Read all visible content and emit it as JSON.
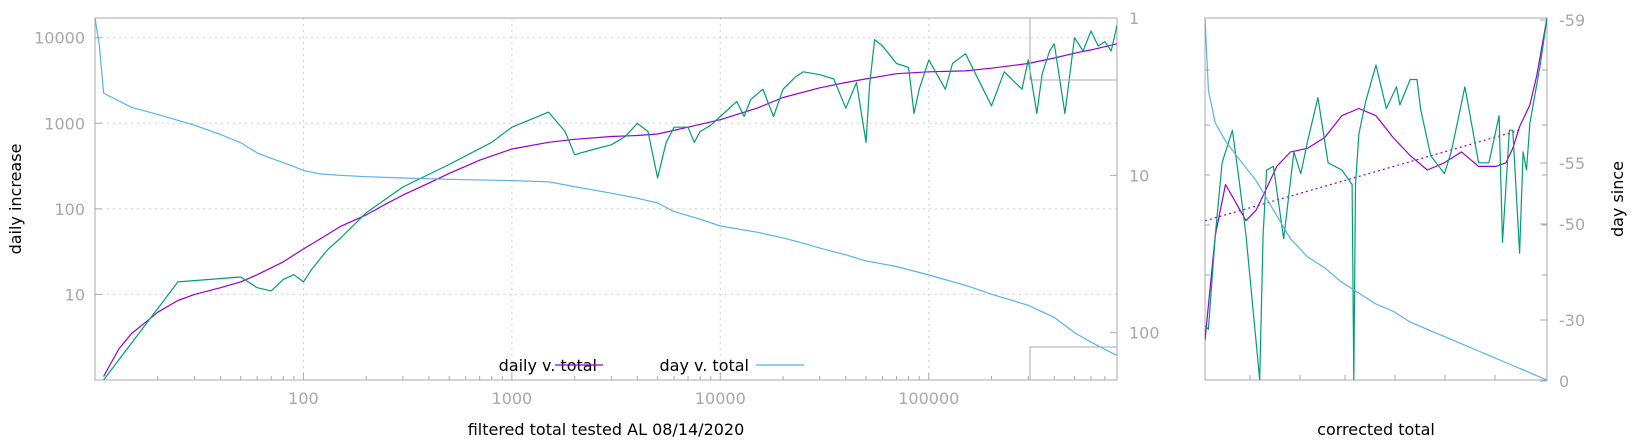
{
  "colors": {
    "daily_smooth": "#9400d3",
    "daily_raw": "#009e73",
    "day": "#56b4e9",
    "axis": "#aaaaaa",
    "grid": "#cfcfcf"
  },
  "chart_data": [
    {
      "type": "line",
      "xlabel": "filtered total tested AL 08/14/2020",
      "ylabel": "daily increase",
      "y2label": "",
      "xscale": "log",
      "yscale": "log",
      "y2scale": "log-reversed",
      "xlim": [
        10,
        800000
      ],
      "ylim": [
        1,
        17000
      ],
      "y2lim": [
        1,
        200
      ],
      "xticks": [
        "100",
        "1000",
        "10000",
        "100000"
      ],
      "yticks": [
        "10",
        "100",
        "1000",
        "10000"
      ],
      "y2ticks": [
        "1",
        "10",
        "100"
      ],
      "grid": true,
      "legend_position": "bottom-center",
      "series": [
        {
          "name": "daily v. total",
          "axis": "y",
          "x": [
            11,
            13,
            15,
            18,
            20,
            25,
            30,
            40,
            50,
            60,
            80,
            100,
            130,
            150,
            200,
            250,
            300,
            400,
            500,
            700,
            1000,
            1500,
            2000,
            3000,
            4000,
            5000,
            7000,
            10000,
            15000,
            20000,
            30000,
            40000,
            50000,
            70000,
            100000,
            150000,
            200000,
            300000,
            400000,
            500000,
            600000,
            800000
          ],
          "y": [
            1.1,
            2.3,
            3.5,
            5,
            6.2,
            8.5,
            10,
            12,
            14,
            17,
            24,
            34,
            50,
            62,
            85,
            115,
            145,
            200,
            260,
            370,
            500,
            600,
            650,
            700,
            720,
            750,
            900,
            1100,
            1500,
            2000,
            2600,
            3000,
            3300,
            3800,
            4000,
            4100,
            4400,
            5000,
            5800,
            6600,
            7200,
            8500
          ]
        },
        {
          "name": "",
          "axis": "y",
          "x": [
            11,
            25,
            50,
            60,
            70,
            80,
            90,
            100,
            110,
            130,
            150,
            200,
            300,
            500,
            800,
            1000,
            1500,
            1800,
            2000,
            2500,
            3000,
            3500,
            4000,
            4500,
            5000,
            5500,
            6000,
            7000,
            7500,
            8000,
            9000,
            10000,
            12000,
            13000,
            14000,
            16000,
            18000,
            20000,
            23000,
            25000,
            30000,
            35000,
            40000,
            45000,
            50000,
            52000,
            55000,
            60000,
            70000,
            80000,
            85000,
            90000,
            100000,
            120000,
            130000,
            150000,
            200000,
            230000,
            280000,
            300000,
            330000,
            350000,
            380000,
            400000,
            450000,
            500000,
            550000,
            600000,
            650000,
            700000,
            750000,
            800000
          ],
          "y": [
            1,
            14,
            16,
            12,
            11,
            15,
            17,
            14,
            20,
            33,
            45,
            90,
            180,
            330,
            600,
            900,
            1350,
            800,
            430,
            500,
            560,
            700,
            1000,
            800,
            230,
            600,
            900,
            900,
            600,
            800,
            950,
            1200,
            1800,
            1200,
            1900,
            2500,
            1200,
            2500,
            3500,
            4000,
            3700,
            3300,
            1500,
            3000,
            600,
            2800,
            9500,
            8000,
            5000,
            4500,
            1300,
            2500,
            5500,
            2500,
            5000,
            6500,
            1600,
            4000,
            2500,
            5500,
            1300,
            3800,
            7000,
            8500,
            1300,
            10000,
            7000,
            12000,
            8000,
            9000,
            7000,
            14000
          ]
        },
        {
          "name": "day v. total",
          "axis": "y2",
          "x": [
            10,
            10.5,
            11,
            15,
            20,
            30,
            40,
            50,
            60,
            70,
            80,
            90,
            100,
            120,
            150,
            200,
            300,
            500,
            1000,
            1500,
            2000,
            3000,
            4000,
            5000,
            6000,
            8000,
            10000,
            15000,
            20000,
            25000,
            30000,
            40000,
            50000,
            70000,
            100000,
            150000,
            200000,
            300000,
            400000,
            500000,
            600000,
            800000
          ],
          "y2": [
            1,
            1.5,
            3,
            3.7,
            4.1,
            4.8,
            5.5,
            6.2,
            7.2,
            7.8,
            8.3,
            8.8,
            9.3,
            9.8,
            10,
            10.2,
            10.4,
            10.6,
            10.8,
            11,
            11.8,
            13,
            14,
            15,
            17,
            19,
            21,
            23,
            25,
            27,
            29,
            32,
            35,
            38,
            43,
            50,
            57,
            67,
            80,
            100,
            115,
            140
          ]
        }
      ]
    },
    {
      "type": "line",
      "xlabel": "corrected total",
      "ylabel": "",
      "y2label": "day since",
      "y2ticks": [
        "-59",
        "-55",
        "-50",
        "-30",
        "0"
      ],
      "grid": false,
      "series": [
        {
          "name": "",
          "color": "daily_smooth",
          "x": [
            0,
            0.03,
            0.06,
            0.09,
            0.12,
            0.15,
            0.18,
            0.21,
            0.25,
            0.3,
            0.35,
            0.4,
            0.45,
            0.5,
            0.55,
            0.6,
            0.65,
            0.7,
            0.75,
            0.8,
            0.85,
            0.88,
            0.9,
            0.92,
            0.95,
            0.97,
            1
          ],
          "y": [
            0.11,
            0.4,
            0.54,
            0.49,
            0.44,
            0.47,
            0.53,
            0.59,
            0.63,
            0.64,
            0.67,
            0.73,
            0.75,
            0.73,
            0.67,
            0.62,
            0.58,
            0.6,
            0.63,
            0.59,
            0.59,
            0.6,
            0.64,
            0.7,
            0.76,
            0.84,
            1
          ]
        },
        {
          "name": "",
          "color": "daily_smooth",
          "style": "dotted",
          "x": [
            0,
            0.92
          ],
          "y": [
            0.44,
            0.69
          ]
        },
        {
          "name": "",
          "color": "daily_raw",
          "x": [
            0,
            0.01,
            0.03,
            0.05,
            0.08,
            0.1,
            0.12,
            0.16,
            0.17,
            0.18,
            0.2,
            0.23,
            0.26,
            0.28,
            0.3,
            0.33,
            0.36,
            0.4,
            0.43,
            0.435,
            0.44,
            0.45,
            0.47,
            0.5,
            0.53,
            0.56,
            0.57,
            0.6,
            0.62,
            0.63,
            0.66,
            0.7,
            0.72,
            0.74,
            0.76,
            0.8,
            0.83,
            0.86,
            0.87,
            0.89,
            0.9,
            0.92,
            0.93,
            0.94,
            0.95,
            0.98,
            1
          ],
          "y": [
            0.15,
            0.14,
            0.4,
            0.6,
            0.69,
            0.55,
            0.4,
            0.0,
            0.4,
            0.58,
            0.59,
            0.39,
            0.63,
            0.57,
            0.66,
            0.78,
            0.6,
            0.58,
            0.54,
            0.0,
            0.54,
            0.68,
            0.77,
            0.87,
            0.75,
            0.81,
            0.76,
            0.83,
            0.83,
            0.75,
            0.62,
            0.57,
            0.63,
            0.72,
            0.81,
            0.6,
            0.6,
            0.73,
            0.38,
            0.69,
            0.69,
            0.35,
            0.63,
            0.58,
            0.71,
            0.87,
            1
          ]
        },
        {
          "name": "",
          "color": "day",
          "x": [
            0,
            0.01,
            0.03,
            0.06,
            0.1,
            0.15,
            0.2,
            0.25,
            0.3,
            0.35,
            0.4,
            0.45,
            0.5,
            0.55,
            0.6,
            0.65,
            0.7,
            0.75,
            0.8,
            0.85,
            0.9,
            0.95,
            1
          ],
          "y": [
            1,
            0.8,
            0.71,
            0.66,
            0.61,
            0.55,
            0.47,
            0.39,
            0.34,
            0.31,
            0.27,
            0.24,
            0.21,
            0.19,
            0.16,
            0.14,
            0.12,
            0.1,
            0.08,
            0.06,
            0.04,
            0.02,
            0
          ]
        }
      ]
    }
  ]
}
